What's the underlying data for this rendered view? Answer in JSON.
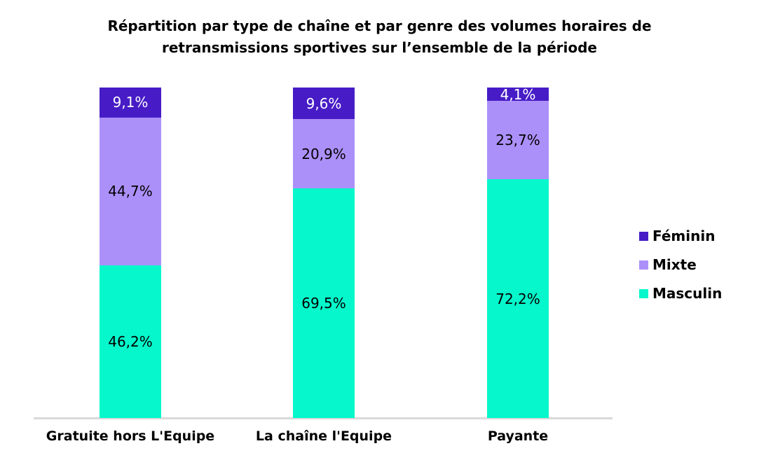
{
  "chart_data": {
    "type": "bar",
    "stacked": true,
    "stacking": "percent",
    "title": "Répartition par type de chaîne et par genre des volumes horaires de retransmissions sportives sur l’ensemble de la période",
    "categories": [
      "Gratuite hors L'Equipe",
      "La chaîne l'Equipe",
      "Payante"
    ],
    "series": [
      {
        "name": "Féminin",
        "color": "#471cc6",
        "label_color": "#ffffff",
        "values": [
          9.1,
          9.6,
          4.1
        ],
        "labels": [
          "9,1%",
          "9,6%",
          "4,1%"
        ]
      },
      {
        "name": "Mixte",
        "color": "#ac90fa",
        "label_color": "#000000",
        "values": [
          44.7,
          20.9,
          23.7
        ],
        "labels": [
          "44,7%",
          "20,9%",
          "23,7%"
        ]
      },
      {
        "name": "Masculin",
        "color": "#06f7cb",
        "label_color": "#000000",
        "values": [
          46.2,
          69.5,
          72.2
        ],
        "labels": [
          "46,2%",
          "69,5%",
          "72,2%"
        ]
      }
    ],
    "ylim": [
      0,
      100
    ],
    "grid": false,
    "legend_position": "right",
    "axis_line_color": "#d9d9d9",
    "background_color": "#ffffff"
  }
}
